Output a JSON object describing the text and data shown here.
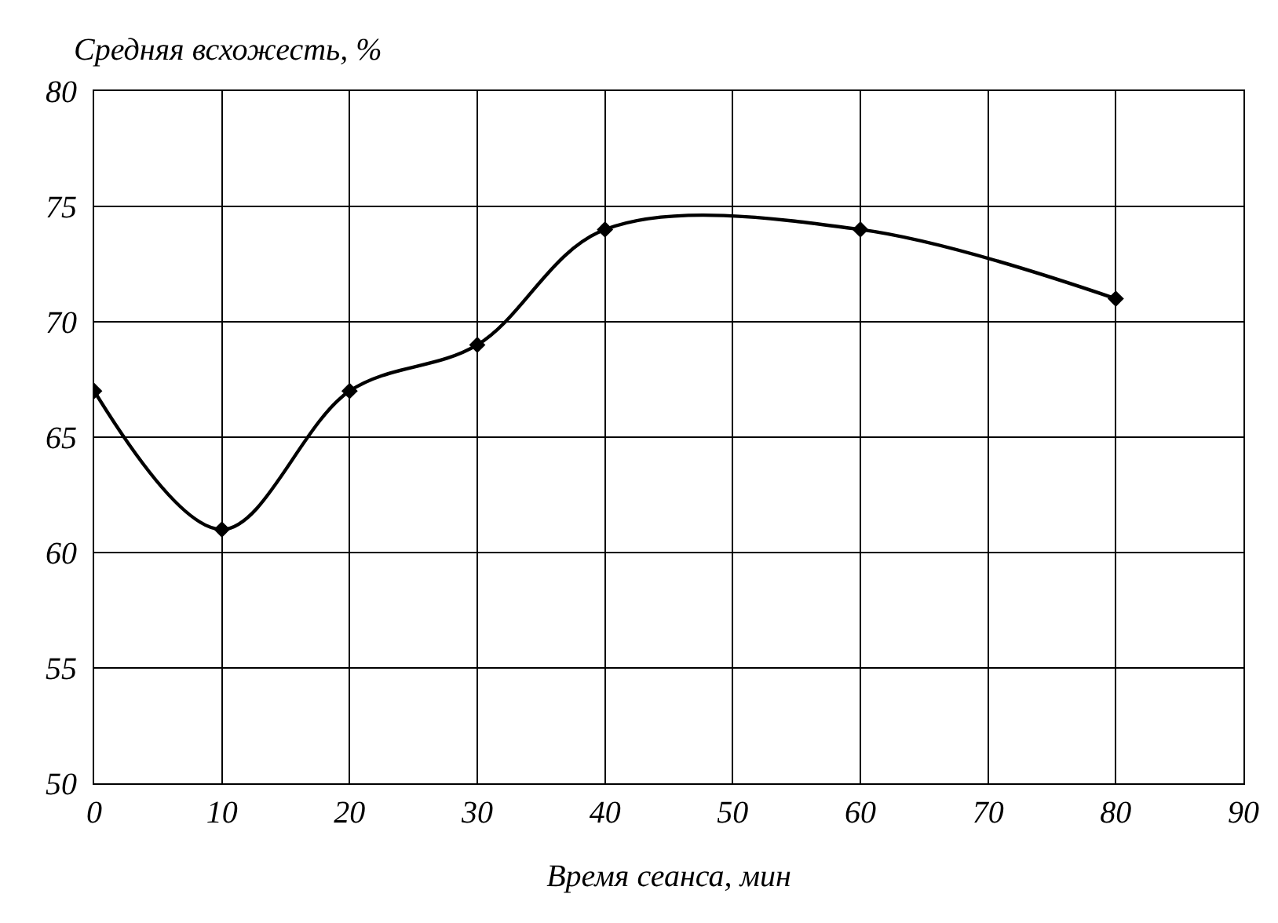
{
  "chart_data": {
    "type": "line",
    "xlabel": "Время сеанса, мин",
    "ylabel": "Средняя всхожесть, %",
    "x": [
      0,
      10,
      20,
      30,
      40,
      60,
      80
    ],
    "series": [
      {
        "color": "#000000",
        "values": [
          67,
          61,
          67,
          69,
          74,
          74,
          71
        ]
      }
    ],
    "xlim": [
      0,
      90
    ],
    "xticks": [
      0,
      10,
      20,
      30,
      40,
      50,
      60,
      70,
      80,
      90
    ],
    "ylim": [
      50,
      80
    ],
    "yticks": [
      50,
      55,
      60,
      65,
      70,
      75,
      80
    ],
    "grid": true,
    "marker": "diamond",
    "line_style": "solid"
  }
}
